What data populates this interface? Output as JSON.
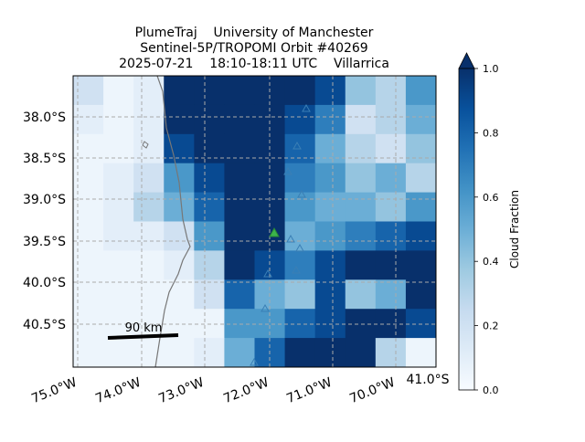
{
  "title": [
    "PlumeTraj    University of Manchester",
    "Sentinel-5P/TROPOMI Orbit #40269",
    "2025-07-21    18:10-18:11 UTC    Villarrica"
  ],
  "map": {
    "lat_labels": [
      "38.0°S",
      "38.5°S",
      "39.0°S",
      "39.5°S",
      "40.0°S",
      "40.5°S"
    ],
    "lon_labels": [
      "75.0°W",
      "74.0°W",
      "73.0°W",
      "72.0°W",
      "71.0°W",
      "70.0°W"
    ],
    "corner_label": "41.0°S",
    "scale_bar": "90 km",
    "cloud_fraction": [
      [
        0.2,
        0.05,
        0.1,
        1,
        1,
        1,
        1,
        1,
        0.9,
        0.4,
        0.3,
        0.6
      ],
      [
        0.1,
        0.05,
        0.1,
        1,
        1,
        1,
        1,
        0.9,
        0.7,
        0.2,
        0.3,
        0.5
      ],
      [
        0.05,
        0.05,
        0.1,
        0.9,
        1,
        1,
        1,
        0.8,
        0.5,
        0.3,
        0.2,
        0.4
      ],
      [
        0.05,
        0.1,
        0.2,
        0.6,
        0.9,
        1,
        1,
        0.7,
        0.6,
        0.4,
        0.5,
        0.3
      ],
      [
        0.05,
        0.1,
        0.3,
        0.5,
        0.8,
        1,
        1,
        0.6,
        0.5,
        0.5,
        0.4,
        0.6
      ],
      [
        0.05,
        0.1,
        0.1,
        0.2,
        0.6,
        1,
        1,
        0.5,
        0.6,
        0.7,
        0.8,
        0.9
      ],
      [
        0.05,
        0.05,
        0.05,
        0.1,
        0.3,
        1,
        0.9,
        0.7,
        0.9,
        1,
        1,
        1
      ],
      [
        0.05,
        0.05,
        0.05,
        0.05,
        0.2,
        0.8,
        0.5,
        0.4,
        0.9,
        0.4,
        0.5,
        1
      ],
      [
        0.05,
        0.05,
        0.05,
        0.05,
        0.05,
        0.6,
        0.6,
        0.8,
        0.9,
        1,
        1,
        0.9
      ],
      [
        0.05,
        0.05,
        0.05,
        0.05,
        0.1,
        0.5,
        0.8,
        1,
        1,
        1,
        0.3,
        0.05
      ]
    ]
  },
  "colorbar": {
    "label": "Cloud Fraction",
    "lim": [
      0,
      1
    ],
    "ticks": [
      {
        "value": 0,
        "label": "0.0"
      },
      {
        "value": 0.2,
        "label": "0.2"
      },
      {
        "value": 0.4,
        "label": "0.4"
      },
      {
        "value": 0.6,
        "label": "0.6"
      },
      {
        "value": 0.8,
        "label": "0.8"
      },
      {
        "value": 1,
        "label": "1.0"
      }
    ],
    "colormap": [
      "#f7fbff",
      "#deebf7",
      "#c6dbef",
      "#9ecae1",
      "#6baed6",
      "#4292c6",
      "#2171b5",
      "#08519c",
      "#08306b"
    ]
  }
}
